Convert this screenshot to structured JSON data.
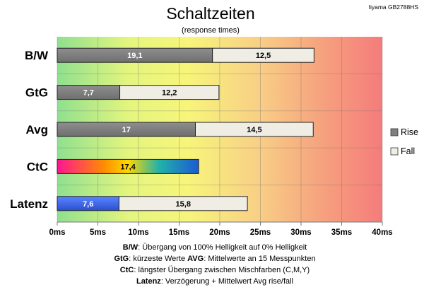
{
  "chart_data": {
    "type": "bar",
    "orientation": "horizontal",
    "stacked": true,
    "title": "Schaltzeiten",
    "subtitle": "(response times)",
    "corner_label": "Iiyama GB2788HS",
    "categories": [
      "B/W",
      "GtG",
      "Avg",
      "CtC",
      "Latenz"
    ],
    "series": [
      {
        "name": "Rise",
        "values": [
          19.1,
          7.7,
          17,
          17.4,
          7.6
        ],
        "labels": [
          "19,1",
          "7,7",
          "17",
          "17,4",
          "7,6"
        ]
      },
      {
        "name": "Fall",
        "values": [
          12.5,
          12.2,
          14.5,
          null,
          15.8
        ],
        "labels": [
          "12,5",
          "12,2",
          "14,5",
          "",
          "15,8"
        ]
      }
    ],
    "xlim": [
      0,
      40
    ],
    "x_ticks": [
      "0ms",
      "5ms",
      "10ms",
      "15ms",
      "20ms",
      "25ms",
      "30ms",
      "35ms",
      "40ms"
    ],
    "grid": true,
    "legend_position": "right",
    "colors": {
      "rise": "#808080",
      "fall": "#efede4",
      "latenz": "#3f67e6",
      "background_gradient": [
        "#8fe08f",
        "#f3f37a",
        "#f8c884",
        "#f58080"
      ],
      "ctc_gradient": [
        "#ff1493",
        "#ff7f00",
        "#ffd700",
        "#20b2aa",
        "#1e5ad2"
      ]
    }
  },
  "notes": [
    {
      "key": "B/W",
      "text": ":  Übergang von 100% Helligkeit auf 0% Helligkeit"
    },
    {
      "key": "GtG",
      "text": ": kürzeste  Werte",
      "key2": "AVG",
      "text2": ": Mittelwerte  an 15 Messpunkten"
    },
    {
      "key": "CtC",
      "text": ": längster Übergang  zwischen Mischfarben  (C,M,Y)"
    },
    {
      "key": "Latenz",
      "text": ": Verzögerung  + Mittelwert Avg rise/fall"
    }
  ]
}
